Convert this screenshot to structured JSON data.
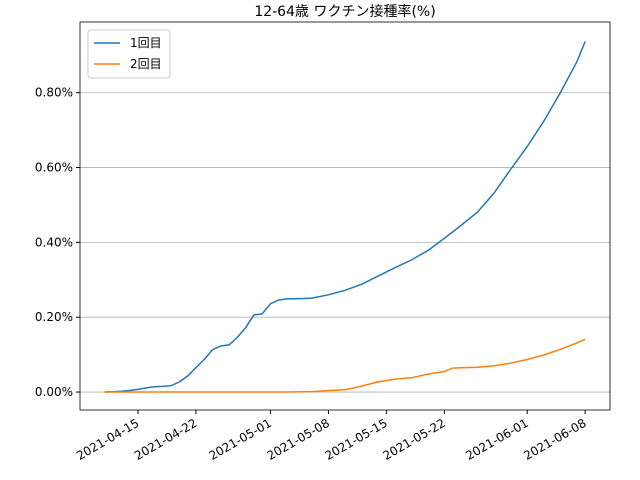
{
  "chart_data": {
    "type": "line",
    "title": "12-64歳 ワクチン接種率(%)",
    "x": [
      "2021-04-11",
      "2021-04-12",
      "2021-04-13",
      "2021-04-14",
      "2021-04-15",
      "2021-04-16",
      "2021-04-17",
      "2021-04-18",
      "2021-04-19",
      "2021-04-20",
      "2021-04-21",
      "2021-04-22",
      "2021-04-23",
      "2021-04-24",
      "2021-04-25",
      "2021-04-26",
      "2021-04-27",
      "2021-04-28",
      "2021-04-29",
      "2021-04-30",
      "2021-05-01",
      "2021-05-02",
      "2021-05-03",
      "2021-05-05",
      "2021-05-06",
      "2021-05-08",
      "2021-05-10",
      "2021-05-12",
      "2021-05-14",
      "2021-05-16",
      "2021-05-18",
      "2021-05-20",
      "2021-05-22",
      "2021-05-23",
      "2021-05-24",
      "2021-05-26",
      "2021-05-28",
      "2021-05-30",
      "2021-06-01",
      "2021-06-03",
      "2021-06-05",
      "2021-06-07",
      "2021-06-08"
    ],
    "series": [
      {
        "name": "1回目",
        "color": "#1f77b4",
        "values": [
          0,
          0.001,
          0.002,
          0.004,
          0.007,
          0.011,
          0.014,
          0.015,
          0.017,
          0.027,
          0.043,
          0.065,
          0.087,
          0.113,
          0.123,
          0.126,
          0.146,
          0.172,
          0.206,
          0.209,
          0.236,
          0.246,
          0.249,
          0.25,
          0.251,
          0.26,
          0.272,
          0.288,
          0.31,
          0.332,
          0.353,
          0.378,
          0.411,
          0.428,
          0.445,
          0.481,
          0.532,
          0.595,
          0.656,
          0.724,
          0.8,
          0.883,
          0.937
        ]
      },
      {
        "name": "2回目",
        "color": "#ff7f0e",
        "values": [
          0,
          0,
          0,
          0,
          0,
          0,
          0,
          0,
          0,
          0,
          0,
          0,
          0,
          0,
          0,
          0,
          0,
          0,
          0,
          0,
          0,
          0,
          0,
          0.001,
          0.001,
          0.004,
          0.006,
          0.016,
          0.027,
          0.034,
          0.038,
          0.048,
          0.055,
          0.064,
          0.065,
          0.066,
          0.07,
          0.077,
          0.087,
          0.099,
          0.114,
          0.131,
          0.141
        ]
      }
    ],
    "xlim": [
      "2021-04-08",
      "2021-06-11"
    ],
    "xticks": [
      "2021-04-15",
      "2021-04-22",
      "2021-05-01",
      "2021-05-08",
      "2021-05-15",
      "2021-05-22",
      "2021-06-01",
      "2021-06-08"
    ],
    "ylim": [
      -0.048,
      0.989
    ],
    "yticks": [
      {
        "value": 0,
        "label": "0.00%"
      },
      {
        "value": 0.2,
        "label": "0.20%"
      },
      {
        "value": 0.4,
        "label": "0.40%"
      },
      {
        "value": 0.6,
        "label": "0.60%"
      },
      {
        "value": 0.8,
        "label": "0.80%"
      }
    ],
    "grid": "y",
    "legend": "upper left"
  }
}
